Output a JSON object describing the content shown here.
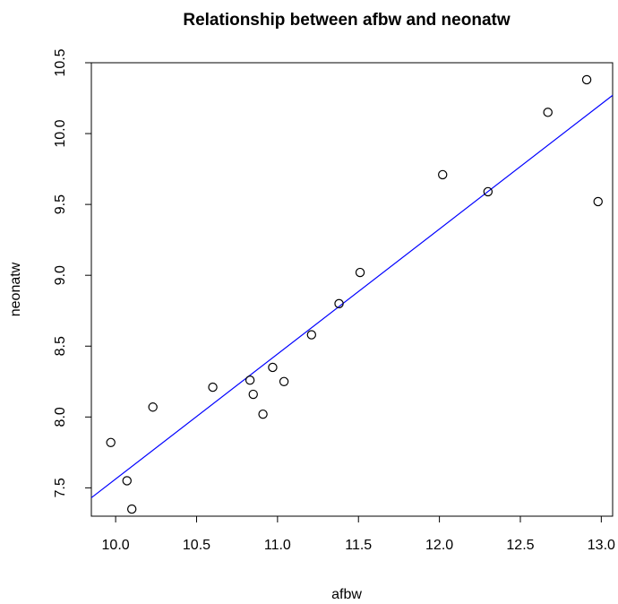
{
  "chart_data": {
    "type": "scatter",
    "title": "Relationship between afbw and neonatw",
    "xlabel": "afbw",
    "ylabel": "neonatw",
    "xlim": [
      9.85,
      13.07
    ],
    "ylim": [
      7.3,
      10.5
    ],
    "xticks": [
      "10.0",
      "10.5",
      "11.0",
      "11.5",
      "12.0",
      "12.5",
      "13.0"
    ],
    "yticks": [
      "7.5",
      "8.0",
      "8.5",
      "9.0",
      "9.5",
      "10.0",
      "10.5"
    ],
    "points": [
      {
        "x": 9.97,
        "y": 7.82
      },
      {
        "x": 10.07,
        "y": 7.55
      },
      {
        "x": 10.1,
        "y": 7.35
      },
      {
        "x": 10.23,
        "y": 8.07
      },
      {
        "x": 10.6,
        "y": 8.21
      },
      {
        "x": 10.83,
        "y": 8.26
      },
      {
        "x": 10.85,
        "y": 8.16
      },
      {
        "x": 10.91,
        "y": 8.02
      },
      {
        "x": 10.97,
        "y": 8.35
      },
      {
        "x": 11.04,
        "y": 8.25
      },
      {
        "x": 11.21,
        "y": 8.58
      },
      {
        "x": 11.38,
        "y": 8.8
      },
      {
        "x": 11.51,
        "y": 9.02
      },
      {
        "x": 12.02,
        "y": 9.71
      },
      {
        "x": 12.3,
        "y": 9.59
      },
      {
        "x": 12.67,
        "y": 10.15
      },
      {
        "x": 12.91,
        "y": 10.38
      },
      {
        "x": 12.98,
        "y": 9.52
      }
    ],
    "fit_line": {
      "x": [
        9.85,
        13.07
      ],
      "y": [
        7.43,
        10.27
      ],
      "color": "#0000ff"
    },
    "point_color": "#000000",
    "grid": false,
    "legend": "none"
  }
}
